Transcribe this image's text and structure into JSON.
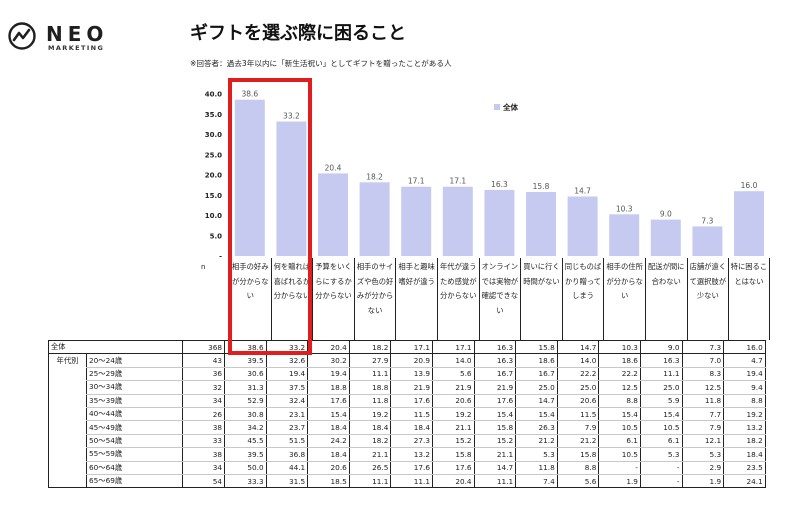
{
  "logo": {
    "name": "NEO",
    "sub": "MARKETING"
  },
  "title": "ギフトを選ぶ際に困ること",
  "subtitle": "※回答者：過去3年以内に「新生活祝い」としてギフトを贈ったことがある人",
  "n_label": "n",
  "chart_data": {
    "type": "bar",
    "categories": [
      "相手の好みが分からない",
      "何を贈れば喜ばれるか分からない",
      "予算をいくらにするか分からない",
      "相手のサイズや色の好みが分からない",
      "相手と趣味嗜好が違う",
      "年代が違うため感覚が分からない",
      "オンラインでは実物が確認できない",
      "買いに行く時間がない",
      "同じものばかり贈ってしまう",
      "相手の住所が分からない",
      "配送が間に合わない",
      "店舗が遠くて選択肢が少ない",
      "特に困ることはない"
    ],
    "series": [
      {
        "name": "全体",
        "values": [
          38.6,
          33.2,
          20.4,
          18.2,
          17.1,
          17.1,
          16.3,
          15.8,
          14.7,
          10.3,
          9.0,
          7.3,
          16.0
        ],
        "color": "#c7caf0"
      }
    ],
    "yticks": [
      "40.0",
      "35.0",
      "30.0",
      "25.0",
      "20.0",
      "15.0",
      "10.0",
      "5.0",
      "-"
    ],
    "ylim": [
      0,
      40
    ],
    "legend": "top-right"
  },
  "table": {
    "rows": [
      {
        "group": "全体",
        "label": "",
        "n": "368",
        "values": [
          "38.6",
          "33.2",
          "20.4",
          "18.2",
          "17.1",
          "17.1",
          "16.3",
          "15.8",
          "14.7",
          "10.3",
          "9.0",
          "7.3",
          "16.0"
        ]
      },
      {
        "group": "年代別",
        "label": "20～24歳",
        "n": "43",
        "values": [
          "39.5",
          "32.6",
          "30.2",
          "27.9",
          "20.9",
          "14.0",
          "16.3",
          "18.6",
          "14.0",
          "18.6",
          "16.3",
          "7.0",
          "4.7"
        ]
      },
      {
        "group": "",
        "label": "25～29歳",
        "n": "36",
        "values": [
          "30.6",
          "19.4",
          "19.4",
          "11.1",
          "13.9",
          "5.6",
          "16.7",
          "16.7",
          "22.2",
          "22.2",
          "11.1",
          "8.3",
          "19.4"
        ]
      },
      {
        "group": "",
        "label": "30～34歳",
        "n": "32",
        "values": [
          "31.3",
          "37.5",
          "18.8",
          "18.8",
          "21.9",
          "21.9",
          "21.9",
          "25.0",
          "25.0",
          "12.5",
          "25.0",
          "12.5",
          "9.4"
        ]
      },
      {
        "group": "",
        "label": "35～39歳",
        "n": "34",
        "values": [
          "52.9",
          "32.4",
          "17.6",
          "11.8",
          "17.6",
          "20.6",
          "17.6",
          "14.7",
          "20.6",
          "8.8",
          "5.9",
          "11.8",
          "8.8"
        ]
      },
      {
        "group": "",
        "label": "40～44歳",
        "n": "26",
        "values": [
          "30.8",
          "23.1",
          "15.4",
          "19.2",
          "11.5",
          "19.2",
          "15.4",
          "15.4",
          "11.5",
          "15.4",
          "15.4",
          "7.7",
          "19.2"
        ]
      },
      {
        "group": "",
        "label": "45～49歳",
        "n": "38",
        "values": [
          "34.2",
          "23.7",
          "18.4",
          "18.4",
          "18.4",
          "21.1",
          "15.8",
          "26.3",
          "7.9",
          "10.5",
          "10.5",
          "7.9",
          "13.2"
        ]
      },
      {
        "group": "",
        "label": "50～54歳",
        "n": "33",
        "values": [
          "45.5",
          "51.5",
          "24.2",
          "18.2",
          "27.3",
          "15.2",
          "15.2",
          "21.2",
          "21.2",
          "6.1",
          "6.1",
          "12.1",
          "18.2"
        ]
      },
      {
        "group": "",
        "label": "55～59歳",
        "n": "38",
        "values": [
          "39.5",
          "36.8",
          "18.4",
          "21.1",
          "13.2",
          "15.8",
          "21.1",
          "5.3",
          "15.8",
          "10.5",
          "5.3",
          "5.3",
          "18.4"
        ]
      },
      {
        "group": "",
        "label": "60～64歳",
        "n": "34",
        "values": [
          "50.0",
          "44.1",
          "20.6",
          "26.5",
          "17.6",
          "17.6",
          "14.7",
          "11.8",
          "8.8",
          "-",
          "-",
          "2.9",
          "23.5"
        ]
      },
      {
        "group": "",
        "label": "65～69歳",
        "n": "54",
        "values": [
          "33.3",
          "31.5",
          "18.5",
          "11.1",
          "11.1",
          "20.4",
          "11.1",
          "7.4",
          "5.6",
          "1.9",
          "-",
          "1.9",
          "24.1"
        ]
      }
    ]
  }
}
